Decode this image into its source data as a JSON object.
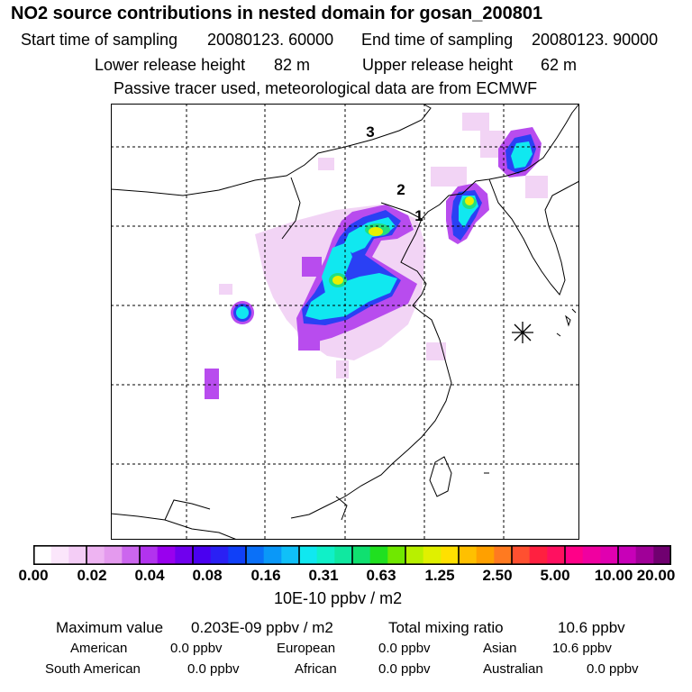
{
  "title": "NO2 source contributions in nested domain for gosan_200801",
  "sampling": {
    "start_label": "Start time of sampling",
    "start_value": "20080123. 60000",
    "end_label": "End time of sampling",
    "end_value": "20080123. 90000"
  },
  "release": {
    "lower_label": "Lower release height",
    "lower_value": "82 m",
    "upper_label": "Upper release height",
    "upper_value": "62 m"
  },
  "note": "Passive tracer used, meteorological data are from ECMWF",
  "map": {
    "point_labels": [
      "1",
      "2",
      "3"
    ],
    "receptor_marker": "gosan-receptor-icon"
  },
  "colorbar": {
    "unit_label": "10E-10 ppbv / m2",
    "tick_labels": [
      "0.00",
      "0.02",
      "0.04",
      "0.08",
      "0.16",
      "0.31",
      "0.63",
      "1.25",
      "2.50",
      "5.00",
      "10.00",
      "20.00"
    ],
    "colors": [
      "#ffffff",
      "#fbe6fb",
      "#f4cdf6",
      "#eeb4f2",
      "#e49aee",
      "#cc66ee",
      "#b233ee",
      "#9900ee",
      "#7000ee",
      "#4a00f0",
      "#2a20f4",
      "#1040f8",
      "#0a70f8",
      "#0a98f8",
      "#10c0f8",
      "#10e8f0",
      "#10f0c8",
      "#10e8a0",
      "#10e070",
      "#20e020",
      "#70e800",
      "#b8f000",
      "#e0f000",
      "#ffe000",
      "#ffc000",
      "#ffa000",
      "#ff7a20",
      "#ff5030",
      "#ff2040",
      "#ff1060",
      "#ff0088",
      "#f000a0",
      "#e000b0",
      "#c800b8",
      "#a00098",
      "#700070"
    ]
  },
  "summary": {
    "max_label": "Maximum value",
    "max_value": "0.203E-09 ppbv / m2",
    "total_label": "Total mixing ratio",
    "total_value": "10.6 ppbv",
    "regions": [
      {
        "name": "American",
        "value": "0.0 ppbv"
      },
      {
        "name": "European",
        "value": "0.0 ppbv"
      },
      {
        "name": "Asian",
        "value": "10.6 ppbv"
      },
      {
        "name": "South American",
        "value": "0.0 ppbv"
      },
      {
        "name": "African",
        "value": "0.0 ppbv"
      },
      {
        "name": "Australian",
        "value": "0.0 ppbv"
      }
    ]
  }
}
